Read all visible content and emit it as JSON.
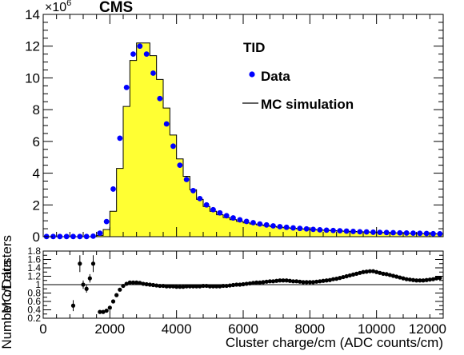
{
  "chart_data": [
    {
      "type": "bar",
      "title": "CMS",
      "exponent_label": "×10",
      "exponent_power": "6",
      "ylabel": "Number of clusters",
      "ylim": [
        0,
        14
      ],
      "yticks": [
        "0",
        "2",
        "4",
        "6",
        "8",
        "10",
        "12",
        "14"
      ],
      "xlim": [
        0,
        12000
      ],
      "legend": {
        "placement": "top-right",
        "title": "TID",
        "entries": [
          "Data",
          "MC simulation"
        ]
      },
      "colors": {
        "mc_fill": "#ffff33",
        "data_marker": "#0000ff",
        "line": "#000000"
      },
      "series": [
        {
          "name": "MC simulation",
          "style": "filled histogram",
          "bin_edges": [
            0,
            200,
            400,
            600,
            800,
            1000,
            1200,
            1400,
            1600,
            1800,
            2000,
            2200,
            2400,
            2600,
            2800,
            3000,
            3200,
            3400,
            3600,
            3800,
            4000,
            4200,
            4400,
            4600,
            4800,
            5000,
            5200,
            5400,
            5600,
            5800,
            6000,
            6200,
            6400,
            6600,
            6800,
            7000,
            7200,
            7400,
            7600,
            7800,
            8000,
            8200,
            8400,
            8600,
            8800,
            9000,
            9200,
            9400,
            9600,
            9800,
            10000,
            10200,
            10400,
            10600,
            10800,
            11000,
            11200,
            11400,
            11600,
            11800,
            12000
          ],
          "values": [
            0.0,
            0.0,
            0.0,
            0.0,
            0.0,
            0.0,
            0.0,
            0.0,
            0.08,
            0.45,
            1.6,
            4.3,
            8.2,
            11.1,
            12.2,
            12.2,
            11.4,
            9.9,
            8.1,
            6.4,
            4.9,
            3.8,
            2.95,
            2.35,
            1.9,
            1.6,
            1.38,
            1.2,
            1.07,
            0.96,
            0.87,
            0.8,
            0.74,
            0.69,
            0.64,
            0.6,
            0.56,
            0.53,
            0.5,
            0.47,
            0.45,
            0.42,
            0.4,
            0.38,
            0.36,
            0.34,
            0.33,
            0.31,
            0.3,
            0.28,
            0.27,
            0.25,
            0.24,
            0.23,
            0.22,
            0.21,
            0.2,
            0.19,
            0.18,
            0.17
          ]
        },
        {
          "name": "Data",
          "style": "markers",
          "x": [
            100,
            300,
            500,
            700,
            900,
            1100,
            1300,
            1500,
            1700,
            1900,
            2100,
            2300,
            2500,
            2700,
            2900,
            3100,
            3300,
            3500,
            3700,
            3900,
            4100,
            4300,
            4500,
            4700,
            4900,
            5100,
            5300,
            5500,
            5700,
            5900,
            6100,
            6300,
            6500,
            6700,
            6900,
            7100,
            7300,
            7500,
            7700,
            7900,
            8100,
            8300,
            8500,
            8700,
            8900,
            9100,
            9300,
            9500,
            9700,
            9900,
            10100,
            10300,
            10500,
            10700,
            10900,
            11100,
            11300,
            11500,
            11700,
            11900
          ],
          "y": [
            0.01,
            0.01,
            0.01,
            0.01,
            0.01,
            0.01,
            0.01,
            0.03,
            0.22,
            0.95,
            3.0,
            6.2,
            9.4,
            11.5,
            12.0,
            11.5,
            10.3,
            8.7,
            7.1,
            5.7,
            4.5,
            3.6,
            2.9,
            2.4,
            2.0,
            1.7,
            1.5,
            1.32,
            1.18,
            1.06,
            0.96,
            0.88,
            0.8,
            0.74,
            0.68,
            0.63,
            0.59,
            0.55,
            0.52,
            0.49,
            0.46,
            0.43,
            0.41,
            0.39,
            0.37,
            0.35,
            0.33,
            0.31,
            0.3,
            0.28,
            0.27,
            0.26,
            0.25,
            0.24,
            0.23,
            0.22,
            0.21,
            0.2,
            0.19,
            0.18
          ]
        }
      ]
    },
    {
      "type": "scatter",
      "ylabel": "MC/Data",
      "xlabel": "Cluster charge/cm (ADC counts/cm)",
      "ylim": [
        0.2,
        1.8
      ],
      "yticks": [
        "0.2",
        "0.4",
        "0.6",
        "0.8",
        "1",
        "1.2",
        "1.4",
        "1.6",
        "1.8"
      ],
      "xlim": [
        0,
        12000
      ],
      "xticks": [
        "0",
        "2000",
        "4000",
        "6000",
        "8000",
        "10000",
        "12000"
      ],
      "reference_line": 1,
      "x": [
        900,
        1100,
        1200,
        1300,
        1400,
        1500,
        1700,
        1800,
        1900,
        2000,
        2100,
        2200,
        2300,
        2400,
        2500,
        2600,
        2700,
        2800,
        2900,
        3000,
        3100,
        3200,
        3300,
        3400,
        3500,
        3600,
        3700,
        3800,
        3900,
        4000,
        4100,
        4200,
        4300,
        4400,
        4500,
        4600,
        4700,
        4800,
        4900,
        5000,
        5100,
        5200,
        5300,
        5400,
        5500,
        5600,
        5700,
        5800,
        5900,
        6000,
        6100,
        6200,
        6300,
        6400,
        6500,
        6600,
        6700,
        6800,
        6900,
        7000,
        7100,
        7200,
        7300,
        7400,
        7500,
        7600,
        7700,
        7800,
        7900,
        8000,
        8100,
        8200,
        8300,
        8400,
        8500,
        8600,
        8700,
        8800,
        8900,
        9000,
        9100,
        9200,
        9300,
        9400,
        9500,
        9600,
        9700,
        9800,
        9900,
        10000,
        10100,
        10200,
        10300,
        10400,
        10500,
        10600,
        10700,
        10800,
        10900,
        11000,
        11100,
        11200,
        11300,
        11400,
        11500,
        11600,
        11700,
        11800,
        11900
      ],
      "y": [
        0.5,
        1.5,
        1.0,
        0.9,
        1.15,
        1.5,
        0.35,
        0.35,
        0.38,
        0.45,
        0.6,
        0.75,
        0.88,
        0.97,
        1.02,
        1.05,
        1.05,
        1.05,
        1.04,
        1.02,
        1.01,
        1.0,
        0.99,
        0.98,
        0.97,
        0.97,
        0.96,
        0.96,
        0.96,
        0.95,
        0.95,
        0.95,
        0.96,
        0.96,
        0.96,
        0.96,
        0.96,
        0.97,
        0.97,
        0.96,
        0.96,
        0.96,
        0.96,
        0.97,
        0.97,
        0.98,
        0.99,
        1.0,
        1.0,
        1.01,
        1.02,
        1.03,
        1.04,
        1.05,
        1.05,
        1.06,
        1.07,
        1.08,
        1.08,
        1.09,
        1.1,
        1.1,
        1.1,
        1.09,
        1.08,
        1.08,
        1.07,
        1.06,
        1.06,
        1.06,
        1.06,
        1.07,
        1.08,
        1.09,
        1.1,
        1.11,
        1.13,
        1.14,
        1.16,
        1.18,
        1.2,
        1.22,
        1.24,
        1.26,
        1.28,
        1.3,
        1.31,
        1.32,
        1.32,
        1.3,
        1.28,
        1.26,
        1.25,
        1.23,
        1.21,
        1.19,
        1.17,
        1.15,
        1.13,
        1.12,
        1.11,
        1.1,
        1.1,
        1.1,
        1.11,
        1.12,
        1.13,
        1.15,
        1.16
      ],
      "errors": [
        0.13,
        0.2,
        0.1,
        0.09,
        0.1,
        0.2,
        0.02,
        0.02,
        0.02,
        0.02,
        0.02,
        0.01,
        0.01,
        0.01,
        0.01,
        0.01,
        0.01,
        0.01,
        0.01,
        0.01,
        0.01,
        0.01,
        0.01,
        0.01,
        0.01,
        0.01,
        0.01,
        0.01,
        0.01,
        0.01,
        0.01,
        0.01,
        0.01,
        0.01,
        0.01,
        0.01,
        0.01,
        0.01,
        0.01,
        0.01,
        0.01,
        0.01,
        0.01,
        0.01,
        0.01,
        0.01,
        0.01,
        0.01,
        0.01,
        0.01,
        0.01,
        0.01,
        0.01,
        0.01,
        0.01,
        0.01,
        0.01,
        0.01,
        0.01,
        0.01,
        0.01,
        0.01,
        0.01,
        0.01,
        0.01,
        0.01,
        0.01,
        0.01,
        0.01,
        0.01,
        0.01,
        0.01,
        0.01,
        0.01,
        0.01,
        0.01,
        0.01,
        0.01,
        0.01,
        0.01,
        0.01,
        0.01,
        0.01,
        0.01,
        0.01,
        0.01,
        0.01,
        0.01,
        0.01,
        0.01,
        0.01,
        0.01,
        0.01,
        0.01,
        0.01,
        0.01,
        0.01,
        0.01,
        0.01,
        0.01,
        0.01,
        0.01,
        0.01,
        0.01,
        0.01,
        0.01,
        0.01,
        0.02,
        0.02
      ]
    }
  ]
}
